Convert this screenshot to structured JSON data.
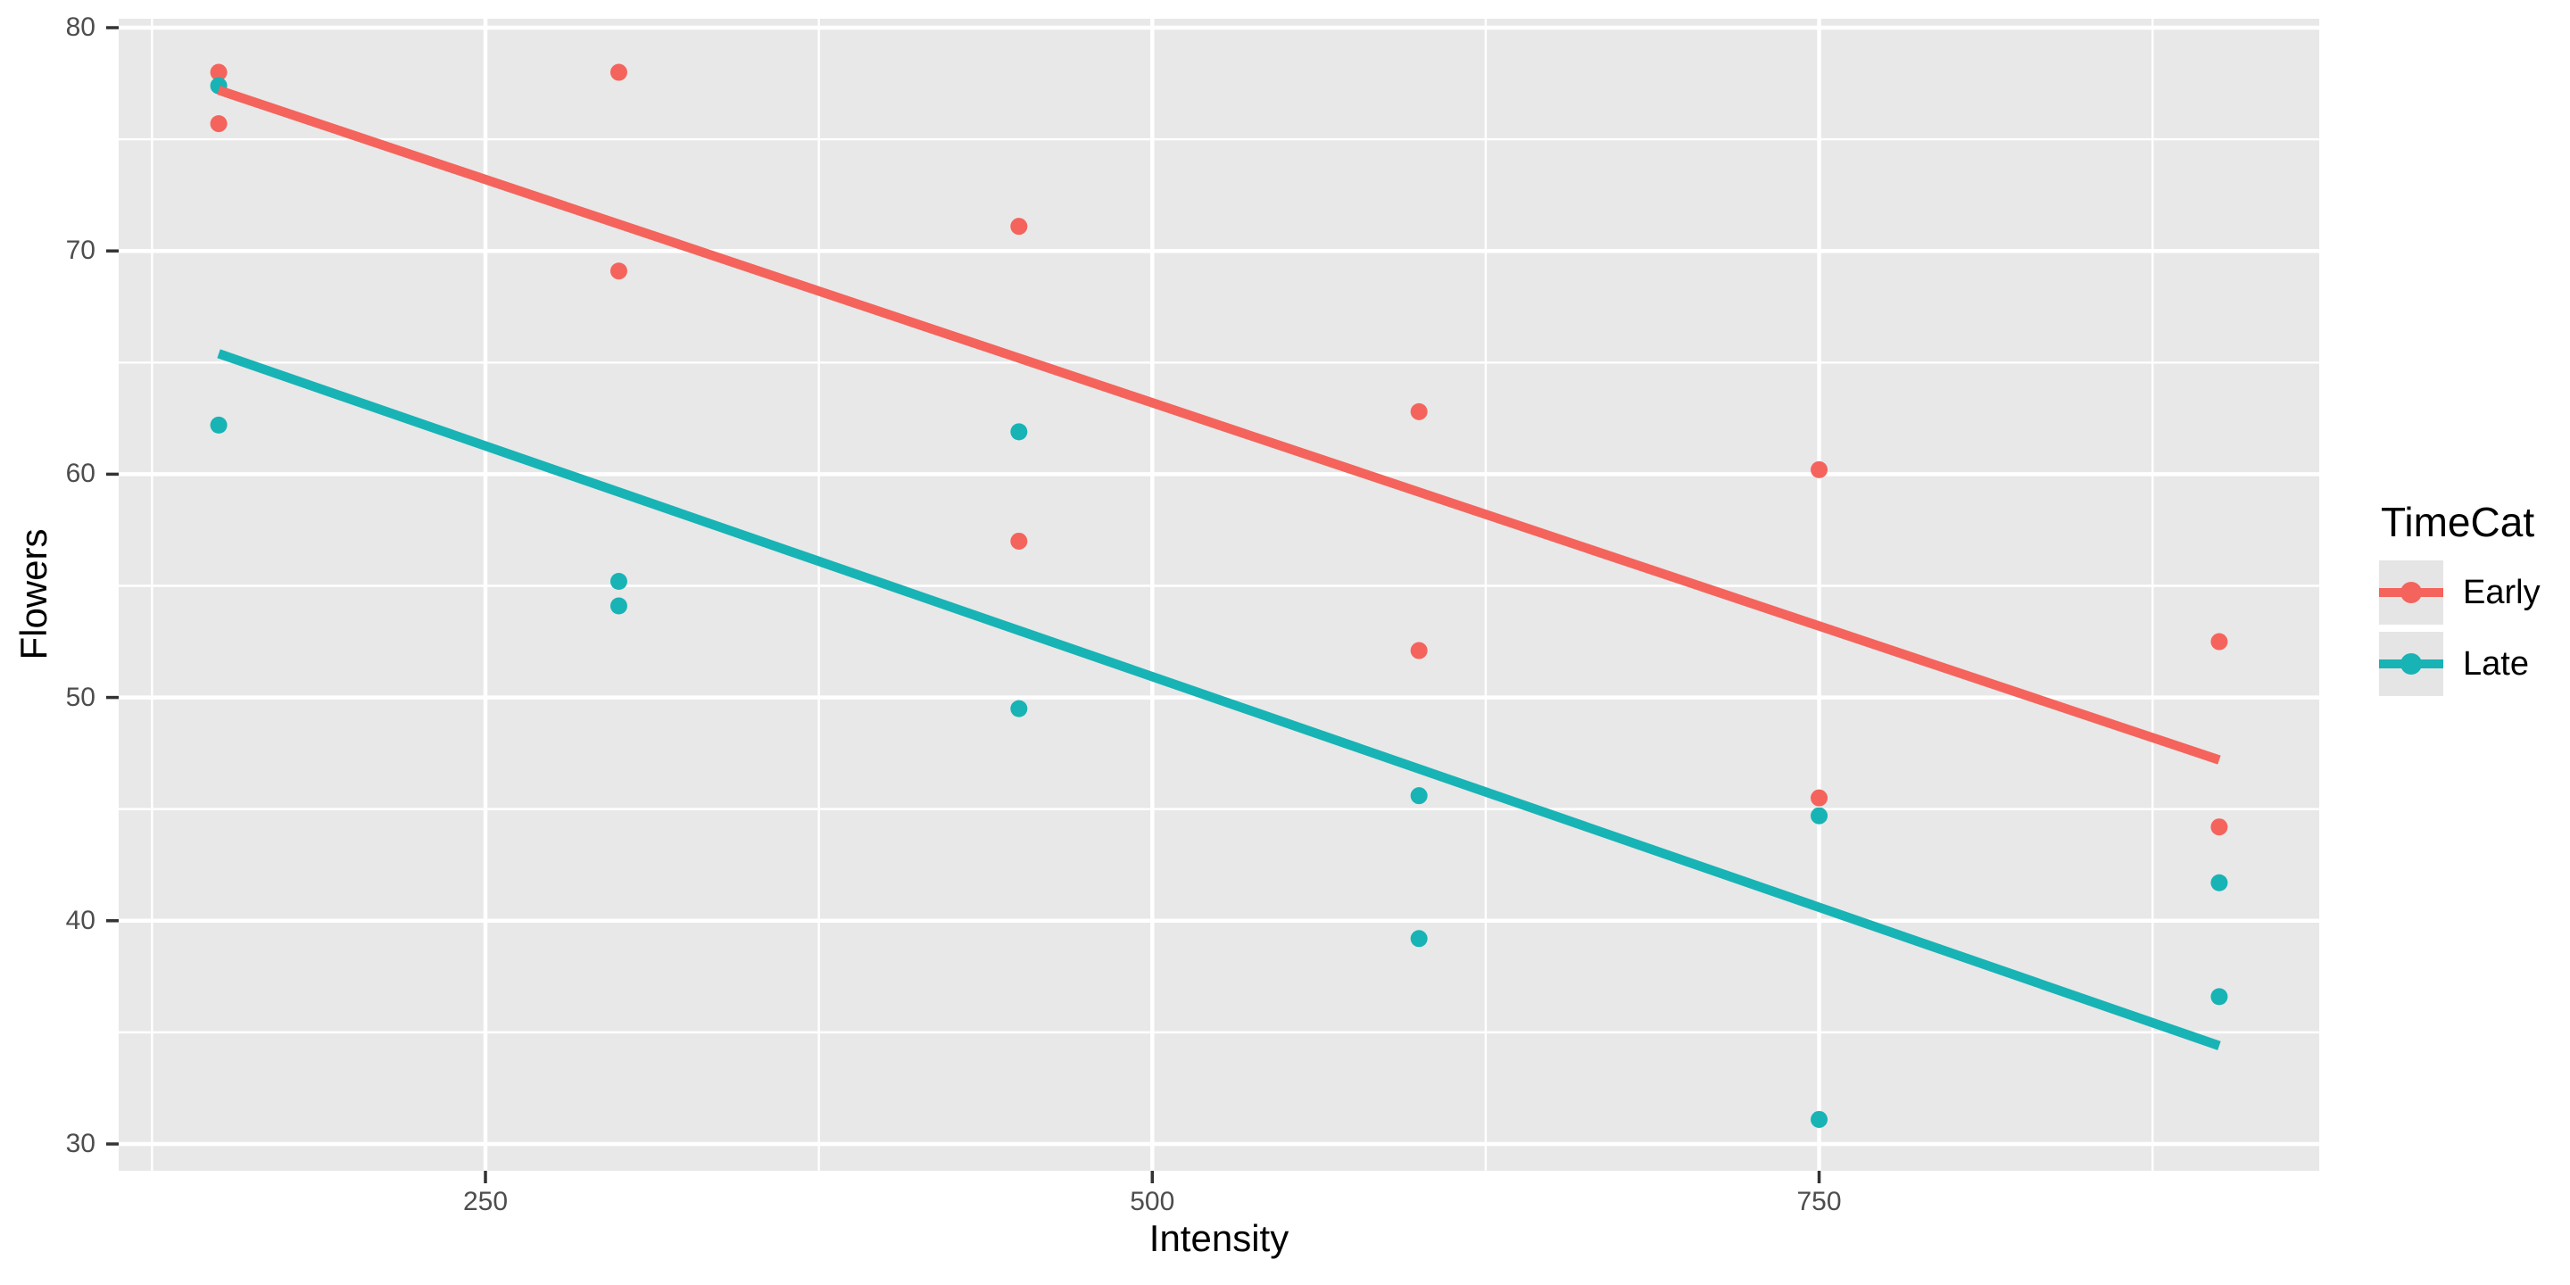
{
  "axes": {
    "x_title": "Intensity",
    "y_title": "Flowers"
  },
  "legend": {
    "title": "TimeCat"
  },
  "chart_data": {
    "type": "scatter",
    "title": "",
    "xlabel": "Intensity",
    "ylabel": "Flowers",
    "legend_title": "TimeCat",
    "legend_position": "right",
    "grid": "on",
    "xlim": [
      112.5,
      937.5
    ],
    "ylim": [
      28.8,
      80.4
    ],
    "x_ticks": [
      250,
      500,
      750
    ],
    "y_ticks": [
      30,
      40,
      50,
      60,
      70,
      80
    ],
    "x_minor_ticks": [
      125,
      375,
      625,
      875
    ],
    "y_minor_ticks": [
      35,
      45,
      55,
      65,
      75
    ],
    "style": {
      "panel_background": "#E8E8E8",
      "gridline_color": "#FFFFFF",
      "tick_text_color": "#4D4D4D",
      "tick_mark_color": "#333333"
    },
    "series": [
      {
        "name": "Early",
        "color": "#F4645C",
        "points": [
          [
            150,
            78.0
          ],
          [
            150,
            75.7
          ],
          [
            300,
            78.0
          ],
          [
            300,
            69.1
          ],
          [
            450,
            71.1
          ],
          [
            450,
            57.0
          ],
          [
            600,
            62.8
          ],
          [
            600,
            52.1
          ],
          [
            750,
            60.2
          ],
          [
            750,
            45.5
          ],
          [
            900,
            52.5
          ],
          [
            900,
            44.2
          ]
        ],
        "trend_line": {
          "x1": 150,
          "y1": 77.2,
          "x2": 900,
          "y2": 47.2
        }
      },
      {
        "name": "Late",
        "color": "#18B3B5",
        "points": [
          [
            150,
            77.4
          ],
          [
            150,
            62.2
          ],
          [
            300,
            55.2
          ],
          [
            300,
            54.1
          ],
          [
            450,
            61.9
          ],
          [
            450,
            49.5
          ],
          [
            600,
            45.6
          ],
          [
            600,
            39.2
          ],
          [
            750,
            44.7
          ],
          [
            750,
            31.1
          ],
          [
            900,
            41.7
          ],
          [
            900,
            36.6
          ]
        ],
        "trend_line": {
          "x1": 150,
          "y1": 65.4,
          "x2": 900,
          "y2": 34.4
        }
      }
    ]
  }
}
